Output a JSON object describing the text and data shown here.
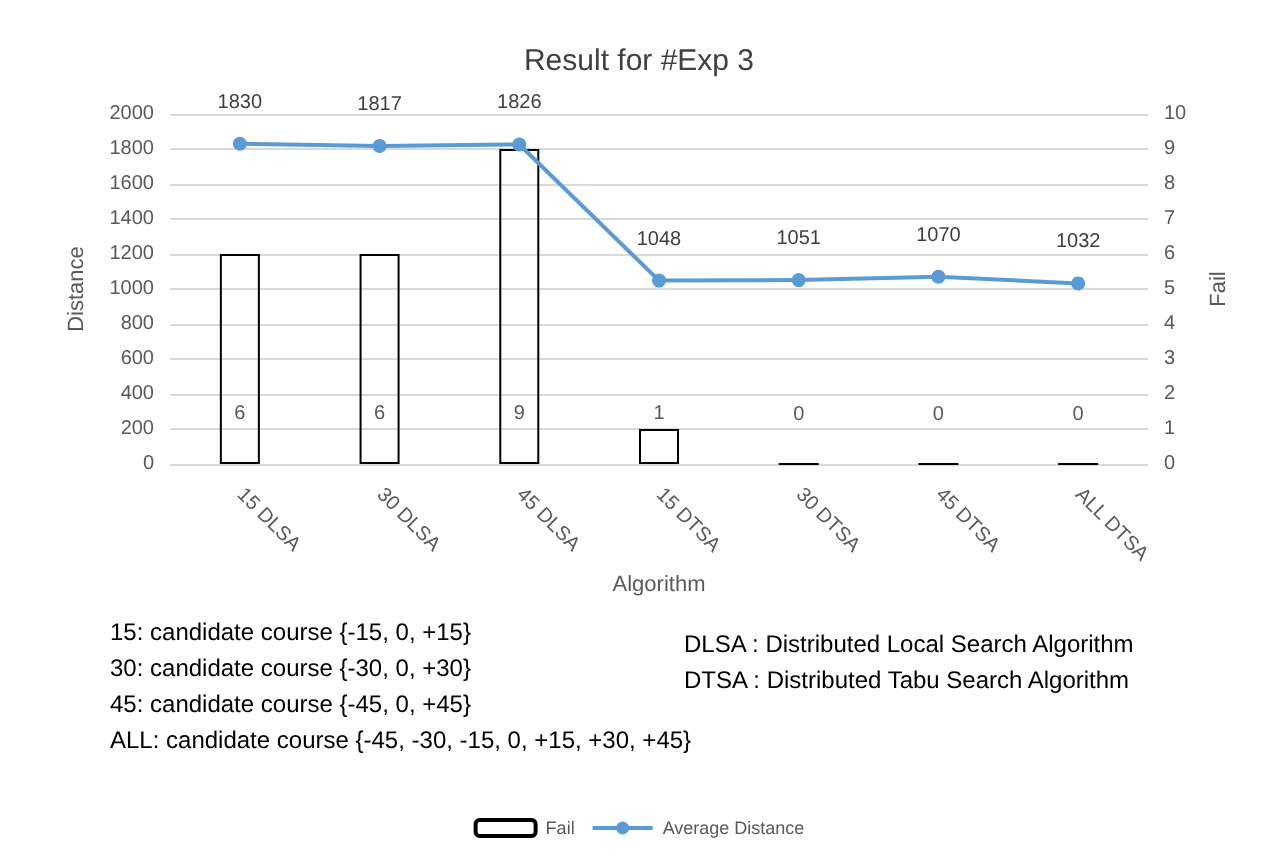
{
  "chart_data": {
    "type": "bar",
    "title": "Result for #Exp 3",
    "xlabel": "Algorithm",
    "ylabel": "Distance",
    "y2label": "Fail",
    "categories": [
      "15 DLSA",
      "30 DLSA",
      "45 DLSA",
      "15 DTSA",
      "30 DTSA",
      "45 DTSA",
      "ALL DTSA"
    ],
    "series": [
      {
        "name": "Fail",
        "axis": "y2",
        "color": "#000000",
        "values": [
          6,
          6,
          9,
          1,
          0,
          0,
          0
        ]
      },
      {
        "name": "Average Distance",
        "type": "line",
        "color": "#5b9bd5",
        "marker": "circle",
        "values": [
          1830,
          1817,
          1826,
          1048,
          1051,
          1070,
          1032
        ]
      }
    ],
    "ylim": [
      0,
      2000
    ],
    "yticks": [
      0,
      200,
      400,
      600,
      800,
      1000,
      1200,
      1400,
      1600,
      1800,
      2000
    ],
    "y2lim": [
      0,
      10
    ],
    "y2ticks": [
      0,
      1,
      2,
      3,
      4,
      5,
      6,
      7,
      8,
      9,
      10
    ],
    "grid": "y",
    "legend": "bottom",
    "data_labels": true,
    "annotations": [
      "15: candidate course {-15, 0, +15}",
      "30: candidate course {-30, 0, +30}",
      "45: candidate course {-45, 0, +45}",
      "ALL: candidate course {-45, -30, -15, 0, +15, +30, +45}",
      "DLSA : Distributed Local Search Algorithm",
      "DTSA : Distributed Tabu Search Algorithm"
    ]
  }
}
